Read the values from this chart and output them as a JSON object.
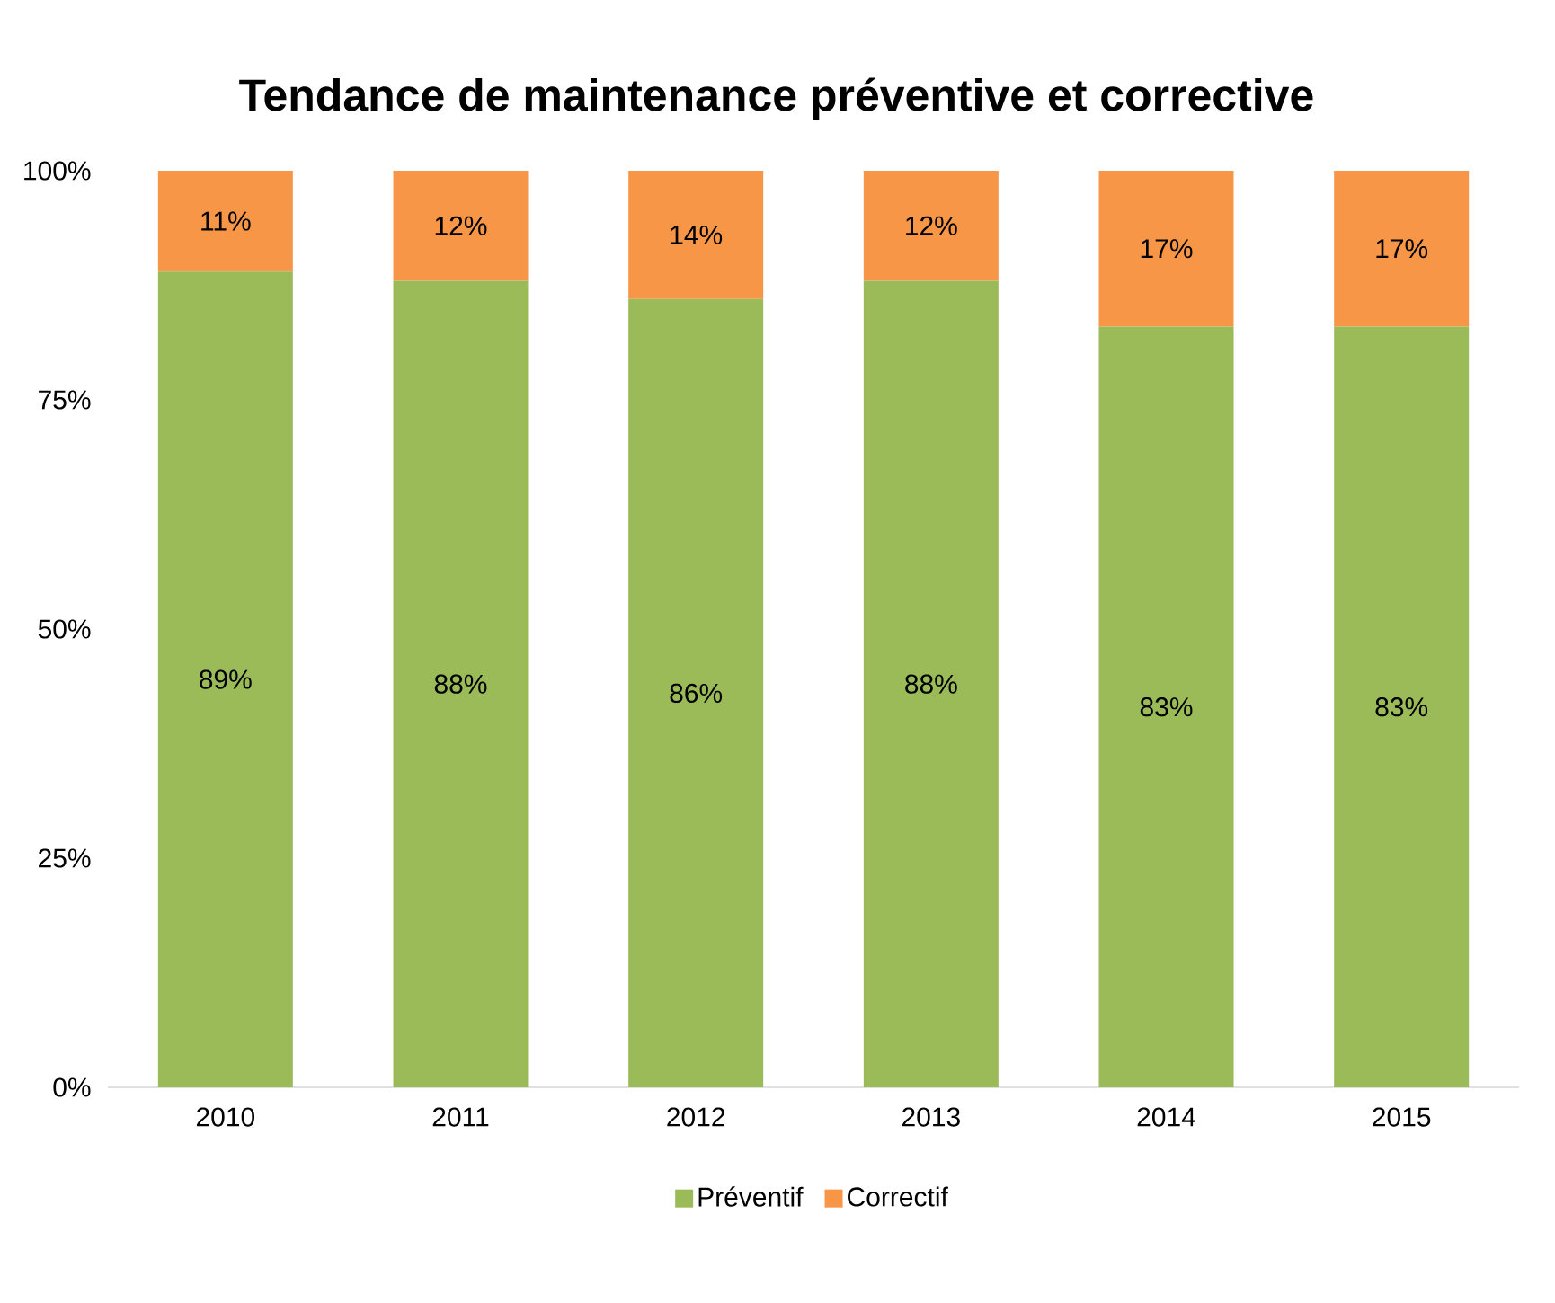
{
  "chart_data": {
    "type": "bar",
    "title": "Tendance de maintenance préventive et corrective",
    "categories": [
      "2010",
      "2011",
      "2012",
      "2013",
      "2014",
      "2015"
    ],
    "stacked": true,
    "series": [
      {
        "name": "Préventif",
        "color": "#9bbb59",
        "values": [
          89,
          88,
          86,
          88,
          83,
          83
        ],
        "value_labels": [
          "89%",
          "88%",
          "86%",
          "88%",
          "83%",
          "83%"
        ]
      },
      {
        "name": "Correctif",
        "color": "#f79646",
        "values": [
          11,
          12,
          14,
          12,
          17,
          17
        ],
        "value_labels": [
          "11%",
          "12%",
          "14%",
          "12%",
          "17%",
          "17%"
        ]
      }
    ],
    "ylim": [
      0,
      100
    ],
    "yticks": [
      {
        "value": 0,
        "label": "0%"
      },
      {
        "value": 25,
        "label": "25%"
      },
      {
        "value": 50,
        "label": "50%"
      },
      {
        "value": 75,
        "label": "75%"
      },
      {
        "value": 100,
        "label": "100%"
      }
    ],
    "grid": false,
    "legend": "bottom"
  }
}
